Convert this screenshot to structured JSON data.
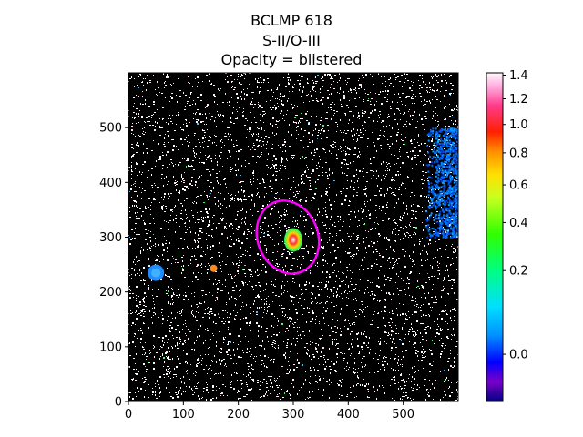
{
  "chart_data": {
    "type": "heatmap",
    "title_lines": [
      "BCLMP 618",
      "S-II/O-III",
      "Opacity = blistered"
    ],
    "xlabel": "",
    "ylabel": "",
    "xlim": [
      0,
      600
    ],
    "ylim": [
      0,
      600
    ],
    "xticks": [
      0,
      100,
      200,
      300,
      400,
      500
    ],
    "yticks": [
      0,
      100,
      200,
      300,
      400,
      500
    ],
    "colorbar": {
      "colormap": "gist_ncar",
      "scale": "power",
      "vmin": -0.03,
      "vmax": 1.42,
      "ticks": [
        "0.0",
        "0.2",
        "0.4",
        "0.6",
        "0.8",
        "1.0",
        "1.2",
        "1.4"
      ]
    },
    "background_color": "#000000",
    "features": [
      {
        "kind": "ellipse",
        "center": [
          290,
          300
        ],
        "semi_axes": [
          55,
          68
        ],
        "rotation_deg": 20,
        "color": "#ff00ff"
      },
      {
        "kind": "source",
        "center": [
          300,
          300
        ],
        "value": 1.1
      },
      {
        "kind": "source",
        "center": [
          50,
          235
        ],
        "value": 0.15
      },
      {
        "kind": "source",
        "center": [
          155,
          243
        ],
        "value": 0.85
      },
      {
        "kind": "diffuse_region",
        "x_range": [
          540,
          600
        ],
        "y_range": [
          300,
          500
        ],
        "value": 0.12
      }
    ]
  }
}
